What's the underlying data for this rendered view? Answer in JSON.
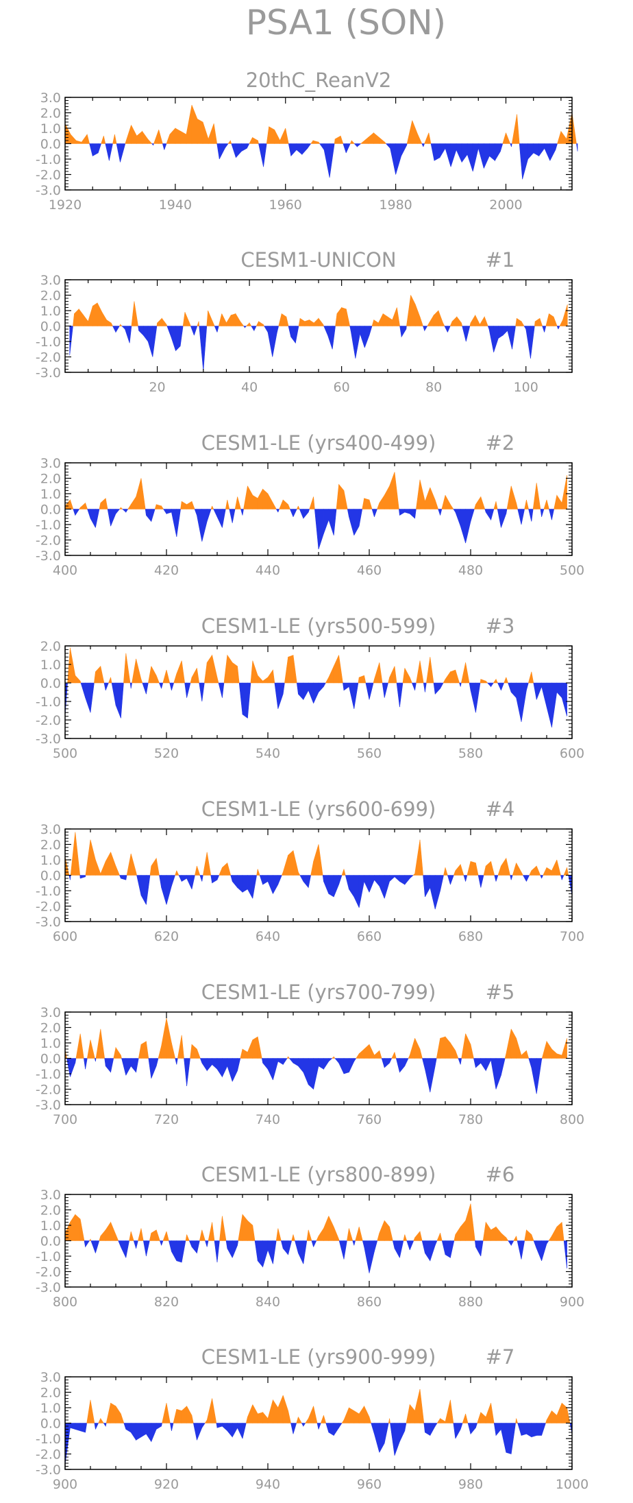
{
  "figure": {
    "title": "PSA1 (SON)",
    "colors": {
      "positive": "#ff8c1a",
      "negative": "#2336e6",
      "axis": "#000000",
      "text": "#9a9a9a"
    }
  },
  "chart_data": [
    {
      "type": "area",
      "title": "20thC_ReanV2",
      "label_suffix": "",
      "xlim": [
        1920,
        2012
      ],
      "x_ticks": [
        1920,
        1940,
        1960,
        1980,
        2000
      ],
      "ylim": [
        -3.0,
        3.0
      ],
      "y_ticks": [
        "3.0",
        "2.0",
        "1.0",
        "0.0",
        "-1.0",
        "-2.0",
        "-3.0"
      ],
      "x_start": 1920,
      "values": [
        1.3,
        0.6,
        0.2,
        0.1,
        0.6,
        -0.8,
        -0.6,
        0.5,
        -1.1,
        0.6,
        -1.2,
        0.1,
        1.2,
        0.5,
        0.8,
        0.3,
        -0.1,
        0.9,
        -0.4,
        0.6,
        1.0,
        0.8,
        0.6,
        2.5,
        1.6,
        1.4,
        0.3,
        1.3,
        -1.0,
        -0.3,
        0.2,
        -0.9,
        -0.5,
        -0.3,
        0.4,
        0.2,
        -1.5,
        1.1,
        0.9,
        0.2,
        1.0,
        -0.8,
        -0.4,
        -0.7,
        -0.3,
        0.2,
        0.1,
        -0.4,
        -2.2,
        0.3,
        0.5,
        -0.6,
        0.2,
        -0.2,
        0.1,
        0.4,
        0.7,
        0.4,
        0.1,
        -0.3,
        -2.0,
        -0.8,
        -0.1,
        1.5,
        0.6,
        -0.2,
        0.7,
        -1.1,
        -0.9,
        -0.3,
        -1.5,
        -0.4,
        -1.2,
        -0.7,
        -1.8,
        -0.3,
        -1.6,
        -0.8,
        -1.1,
        -0.5,
        0.7,
        -0.2,
        1.9,
        -2.3,
        -1.0,
        -0.6,
        -0.8,
        -0.3,
        -1.1,
        -0.4,
        0.8,
        0.3,
        2.0,
        -0.5
      ]
    },
    {
      "type": "area",
      "title": "CESM1-UNICON",
      "label_suffix": "#1",
      "xlim": [
        0,
        110
      ],
      "x_ticks": [
        20,
        40,
        60,
        80,
        100
      ],
      "ylim": [
        -3.0,
        3.0
      ],
      "y_ticks": [
        "3.0",
        "2.0",
        "1.0",
        "0.0",
        "-1.0",
        "-2.0",
        "-3.0"
      ],
      "x_start": 1,
      "values": [
        -1.9,
        0.8,
        1.1,
        0.7,
        0.3,
        1.3,
        1.5,
        0.9,
        0.4,
        0.2,
        -0.4,
        0.1,
        -0.2,
        -1.1,
        1.6,
        -0.3,
        -0.6,
        -1.0,
        -2.0,
        0.2,
        0.5,
        0.1,
        -0.7,
        -1.6,
        -1.3,
        0.9,
        0.2,
        -0.6,
        0.3,
        -2.9,
        1.0,
        0.3,
        -0.4,
        0.8,
        0.2,
        0.7,
        0.8,
        0.3,
        -0.1,
        0.2,
        -0.3,
        0.3,
        0.1,
        -0.4,
        -2.0,
        -0.4,
        0.8,
        0.6,
        -0.7,
        -1.1,
        0.5,
        0.3,
        0.4,
        0.2,
        0.5,
        0.1,
        -0.6,
        -1.5,
        0.8,
        1.2,
        1.1,
        -0.3,
        -2.1,
        -0.5,
        -1.4,
        -0.6,
        0.4,
        0.2,
        0.8,
        0.6,
        0.4,
        1.2,
        -0.7,
        -0.2,
        2.0,
        1.4,
        0.6,
        -0.3,
        0.2,
        0.7,
        1.0,
        0.2,
        -0.4,
        0.3,
        0.6,
        0.2,
        -1.0,
        0.2,
        0.7,
        0.1,
        0.6,
        -0.2,
        -1.7,
        -0.8,
        -0.6,
        -0.3,
        -1.5,
        0.5,
        0.3,
        -0.2,
        -2.1,
        0.3,
        0.5,
        -0.4,
        0.8,
        0.6,
        -0.2,
        0.4,
        1.4
      ]
    },
    {
      "type": "area",
      "title": "CESM1-LE (yrs400-499)",
      "label_suffix": "#2",
      "xlim": [
        400,
        500
      ],
      "x_ticks": [
        400,
        420,
        440,
        460,
        480,
        500
      ],
      "ylim": [
        -3.0,
        3.0
      ],
      "y_ticks": [
        "3.0",
        "2.0",
        "1.0",
        "0.0",
        "-1.0",
        "-2.0",
        "-3.0"
      ],
      "x_start": 400,
      "values": [
        0.2,
        0.6,
        -0.4,
        0.1,
        0.4,
        -0.6,
        -1.2,
        0.4,
        0.7,
        -1.1,
        -0.3,
        0.1,
        -0.2,
        0.3,
        0.8,
        2.0,
        -0.4,
        -0.8,
        0.3,
        0.2,
        -0.3,
        -0.2,
        -1.8,
        0.5,
        0.3,
        0.5,
        -0.4,
        -2.1,
        -0.8,
        0.2,
        -0.5,
        -1.2,
        0.6,
        -0.9,
        0.8,
        -0.4,
        1.5,
        0.9,
        0.7,
        1.3,
        1.0,
        0.4,
        -0.2,
        0.6,
        0.3,
        -0.5,
        0.2,
        -0.6,
        -0.2,
        0.8,
        -2.6,
        -1.6,
        -0.7,
        -1.7,
        1.6,
        1.2,
        -0.5,
        -1.7,
        -1.1,
        0.7,
        0.6,
        -0.5,
        0.4,
        0.9,
        1.5,
        2.4,
        -0.4,
        -0.2,
        -0.3,
        -0.6,
        1.9,
        0.5,
        1.4,
        0.6,
        -0.4,
        0.9,
        0.3,
        -0.2,
        -1.1,
        -2.2,
        -0.8,
        0.3,
        0.8,
        -0.2,
        -0.7,
        0.5,
        -1.2,
        -0.3,
        1.5,
        0.4,
        -1.0,
        0.6,
        -0.8,
        1.7,
        -0.5,
        0.6,
        -0.7,
        0.9,
        0.4,
        2.2
      ]
    },
    {
      "type": "area",
      "title": "CESM1-LE (yrs500-599)",
      "label_suffix": "#3",
      "xlim": [
        500,
        600
      ],
      "x_ticks": [
        500,
        520,
        540,
        560,
        580,
        600
      ],
      "ylim": [
        -3.0,
        2.0
      ],
      "y_ticks": [
        "2.0",
        "1.0",
        "0.0",
        "-1.0",
        "-2.0",
        "-3.0"
      ],
      "x_start": 500,
      "values": [
        -1.8,
        1.9,
        0.4,
        0.1,
        -0.8,
        -1.6,
        0.6,
        0.9,
        -0.4,
        0.3,
        -1.2,
        -1.9,
        1.6,
        -0.3,
        1.3,
        0.2,
        -0.6,
        0.9,
        0.4,
        -0.3,
        0.7,
        -0.4,
        0.5,
        1.2,
        -0.8,
        0.3,
        0.8,
        -1.0,
        1.1,
        1.5,
        0.3,
        -0.8,
        1.5,
        1.1,
        0.9,
        -1.7,
        -1.9,
        1.2,
        0.4,
        0.1,
        0.3,
        0.7,
        -1.4,
        -0.6,
        1.4,
        1.5,
        -0.6,
        -0.9,
        -0.4,
        -1.1,
        -0.5,
        -0.2,
        0.3,
        0.9,
        1.5,
        -0.4,
        -0.2,
        -1.4,
        0.3,
        0.4,
        -0.9,
        0.2,
        1.1,
        -0.8,
        0.3,
        0.9,
        -1.3,
        0.8,
        0.3,
        -0.4,
        1.2,
        -0.5,
        1.4,
        -0.6,
        -0.3,
        0.2,
        0.6,
        0.7,
        -0.2,
        1.1,
        -0.4,
        -1.6,
        0.2,
        0.1,
        -0.2,
        0.2,
        -0.4,
        0.3,
        -0.5,
        -0.8,
        -2.1,
        -0.4,
        0.6,
        -0.9,
        -0.2,
        -1.3,
        -2.4,
        -0.5,
        -0.8,
        -1.8
      ]
    },
    {
      "type": "area",
      "title": "CESM1-LE (yrs600-699)",
      "label_suffix": "#4",
      "xlim": [
        600,
        700
      ],
      "x_ticks": [
        600,
        620,
        640,
        660,
        680,
        700
      ],
      "ylim": [
        -3.0,
        3.0
      ],
      "y_ticks": [
        "3.0",
        "2.0",
        "1.0",
        "0.0",
        "-1.0",
        "-2.0",
        "-3.0"
      ],
      "x_start": 600,
      "values": [
        1.2,
        -0.3,
        2.8,
        -0.2,
        -0.1,
        2.3,
        1.0,
        0.1,
        0.9,
        1.5,
        0.6,
        -0.2,
        -0.3,
        1.4,
        0.2,
        -1.3,
        -1.9,
        0.6,
        1.1,
        -0.8,
        -1.9,
        -0.7,
        0.3,
        -0.4,
        -0.2,
        -0.9,
        0.6,
        -0.4,
        1.5,
        -0.5,
        -0.3,
        0.5,
        0.8,
        -0.4,
        -0.8,
        -1.1,
        -0.9,
        -1.5,
        0.4,
        -0.6,
        -0.4,
        -1.2,
        -0.6,
        0.2,
        1.3,
        1.6,
        0.2,
        -0.4,
        -0.8,
        0.9,
        2.0,
        -0.4,
        -1.2,
        -1.4,
        -0.6,
        0.4,
        -0.9,
        -1.4,
        -2.1,
        -0.4,
        -1.1,
        -0.3,
        -0.7,
        -1.5,
        -0.4,
        -0.1,
        -0.4,
        -0.6,
        -0.2,
        0.1,
        2.3,
        -1.4,
        -0.8,
        -2.2,
        -1.0,
        0.5,
        -0.6,
        0.3,
        0.7,
        -0.4,
        0.9,
        0.8,
        -0.8,
        0.6,
        0.9,
        -0.4,
        0.6,
        1.1,
        -0.3,
        0.8,
        0.2,
        -0.4,
        0.3,
        0.6,
        -0.2,
        0.5,
        0.3,
        1.0,
        -0.3,
        0.5,
        -1.3
      ]
    },
    {
      "type": "area",
      "title": "CESM1-LE (yrs700-799)",
      "label_suffix": "#5",
      "xlim": [
        700,
        800
      ],
      "x_ticks": [
        700,
        720,
        740,
        760,
        780,
        800
      ],
      "ylim": [
        -3.0,
        3.0
      ],
      "y_ticks": [
        "3.0",
        "2.0",
        "1.0",
        "0.0",
        "-1.0",
        "-2.0",
        "-3.0"
      ],
      "x_start": 700,
      "values": [
        0.6,
        -1.2,
        -0.3,
        1.6,
        -0.7,
        1.2,
        -0.2,
        1.9,
        -0.5,
        -0.9,
        0.7,
        0.2,
        -1.1,
        -0.5,
        -0.9,
        0.9,
        1.1,
        -1.3,
        -0.5,
        0.8,
        2.6,
        1.0,
        -0.4,
        1.5,
        -1.8,
        0.9,
        0.6,
        -0.3,
        -0.8,
        -0.4,
        -0.7,
        -1.2,
        -0.5,
        -1.5,
        -0.8,
        0.6,
        0.4,
        1.2,
        1.4,
        -0.3,
        -0.7,
        -1.4,
        -0.2,
        -0.4,
        0.1,
        -0.3,
        -0.5,
        -0.9,
        -1.7,
        -2.0,
        -0.5,
        -0.7,
        -0.2,
        0.1,
        -0.3,
        -1.0,
        -0.9,
        -0.2,
        0.3,
        0.6,
        0.9,
        0.2,
        0.5,
        -0.6,
        -0.3,
        0.4,
        -0.9,
        -0.5,
        0.2,
        1.3,
        0.6,
        -0.7,
        -2.2,
        -0.5,
        1.3,
        1.4,
        1.0,
        0.5,
        -0.4,
        1.6,
        0.9,
        -0.6,
        -0.3,
        -0.8,
        -0.1,
        -2.0,
        -1.1,
        0.3,
        1.9,
        1.3,
        0.2,
        0.5,
        -0.6,
        -2.3,
        -0.1,
        1.1,
        0.6,
        0.3,
        0.2,
        1.3
      ]
    },
    {
      "type": "area",
      "title": "CESM1-LE (yrs800-899)",
      "label_suffix": "#6",
      "xlim": [
        800,
        900
      ],
      "x_ticks": [
        800,
        820,
        840,
        860,
        880,
        900
      ],
      "ylim": [
        -3.0,
        3.0
      ],
      "y_ticks": [
        "3.0",
        "2.0",
        "1.0",
        "0.0",
        "-1.0",
        "-2.0",
        "-3.0"
      ],
      "x_start": 800,
      "values": [
        0.5,
        1.2,
        1.7,
        1.4,
        -0.4,
        0.1,
        -0.8,
        0.3,
        0.7,
        1.2,
        0.4,
        -0.4,
        -1.1,
        0.6,
        -0.5,
        0.8,
        -1.0,
        0.5,
        0.7,
        -0.3,
        0.6,
        -0.7,
        -1.3,
        -1.4,
        0.4,
        -0.4,
        -0.8,
        0.7,
        -0.4,
        1.2,
        -1.4,
        1.6,
        -0.5,
        -1.1,
        -0.3,
        1.7,
        1.3,
        1.0,
        -1.3,
        -1.7,
        -0.6,
        -1.5,
        0.8,
        -0.5,
        -0.9,
        0.4,
        -0.8,
        -1.5,
        0.7,
        -0.4,
        0.3,
        0.8,
        1.6,
        0.9,
        0.1,
        -1.2,
        0.8,
        -0.3,
        0.9,
        -0.4,
        -2.1,
        -0.7,
        0.5,
        1.3,
        0.9,
        -0.5,
        -1.1,
        0.4,
        -0.6,
        0.2,
        0.6,
        -0.8,
        -1.3,
        -0.3,
        0.5,
        -0.9,
        -1.1,
        0.4,
        0.9,
        1.3,
        2.4,
        -0.4,
        -1.0,
        1.2,
        0.7,
        0.9,
        0.5,
        0.2,
        -0.3,
        0.3,
        -1.2,
        0.7,
        0.4,
        -0.5,
        -1.3,
        -0.2,
        0.3,
        0.9,
        1.2,
        -1.8
      ]
    },
    {
      "type": "area",
      "title": "CESM1-LE (yrs900-999)",
      "label_suffix": "#7",
      "xlim": [
        900,
        1000
      ],
      "x_ticks": [
        900,
        920,
        940,
        960,
        980,
        1000
      ],
      "ylim": [
        -3.0,
        3.0
      ],
      "y_ticks": [
        "3.0",
        "2.0",
        "1.0",
        "0.0",
        "-1.0",
        "-2.0",
        "-3.0"
      ],
      "x_start": 900,
      "values": [
        -2.7,
        -0.3,
        -0.4,
        -0.5,
        -0.6,
        1.5,
        -0.4,
        0.3,
        -0.2,
        1.3,
        1.1,
        0.6,
        -0.4,
        -0.6,
        -1.1,
        -0.9,
        -0.7,
        -1.2,
        -0.4,
        -0.2,
        1.3,
        -0.5,
        0.9,
        0.8,
        1.1,
        0.5,
        -1.1,
        -0.3,
        0.2,
        1.6,
        -0.3,
        -0.2,
        -0.5,
        -0.9,
        -0.3,
        -1.0,
        0.4,
        1.2,
        0.6,
        0.7,
        0.3,
        1.5,
        1.0,
        1.8,
        0.8,
        -0.7,
        0.4,
        -0.2,
        0.3,
        1.1,
        -0.4,
        0.5,
        -0.6,
        -0.8,
        -0.3,
        0.2,
        1.0,
        0.8,
        0.6,
        1.1,
        0.4,
        -0.7,
        -1.9,
        -1.3,
        0.3,
        -2.1,
        -1.2,
        -0.5,
        1.2,
        0.8,
        2.2,
        -0.6,
        -0.8,
        -0.2,
        0.3,
        0.1,
        1.5,
        -1.0,
        -0.4,
        0.6,
        -0.7,
        -0.3,
        0.7,
        0.4,
        1.3,
        -0.8,
        -0.4,
        -1.9,
        -2.0,
        0.3,
        -0.8,
        -0.7,
        -0.9,
        -0.8,
        -0.8,
        0.2,
        0.8,
        0.5,
        1.3,
        1.0,
        -0.7
      ]
    }
  ]
}
